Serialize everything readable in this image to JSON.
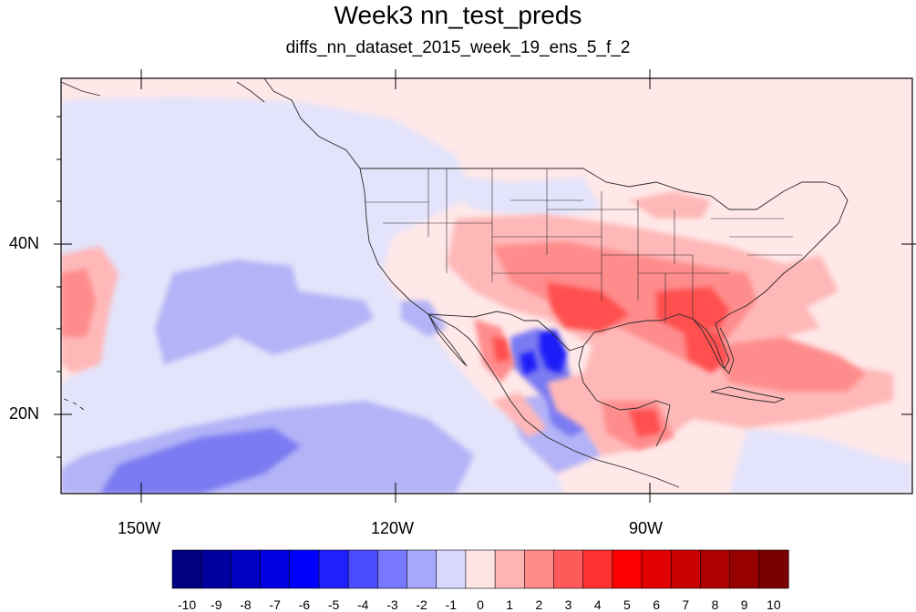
{
  "title": "Week3 nn_test_preds",
  "subtitle": "diffs_nn_dataset_2015_week_19_ens_5_f_2",
  "axes": {
    "y_labels": [
      "40N",
      "20N"
    ],
    "x_labels": [
      "150W",
      "120W",
      "90W"
    ]
  },
  "colorbar": {
    "labels": [
      "-10",
      "-9",
      "-8",
      "-7",
      "-6",
      "-5",
      "-4",
      "-3",
      "-2",
      "-1",
      "0",
      "1",
      "2",
      "3",
      "4",
      "5",
      "6",
      "7",
      "8",
      "9",
      "10"
    ],
    "colors": [
      "#000080",
      "#00009e",
      "#0000c0",
      "#0000e0",
      "#0000ff",
      "#2020ff",
      "#4a4aff",
      "#7878ff",
      "#a8a8ff",
      "#d8d8ff",
      "#ffe4e4",
      "#ffb4b4",
      "#ff8a8a",
      "#ff5a5a",
      "#ff3030",
      "#ff0000",
      "#e00000",
      "#c80000",
      "#ae0000",
      "#960000",
      "#7a0000"
    ]
  },
  "map": {
    "lon_range": [
      -160,
      -62
    ],
    "lat_range": [
      10,
      58
    ],
    "background_color": "#ffe8e8"
  }
}
